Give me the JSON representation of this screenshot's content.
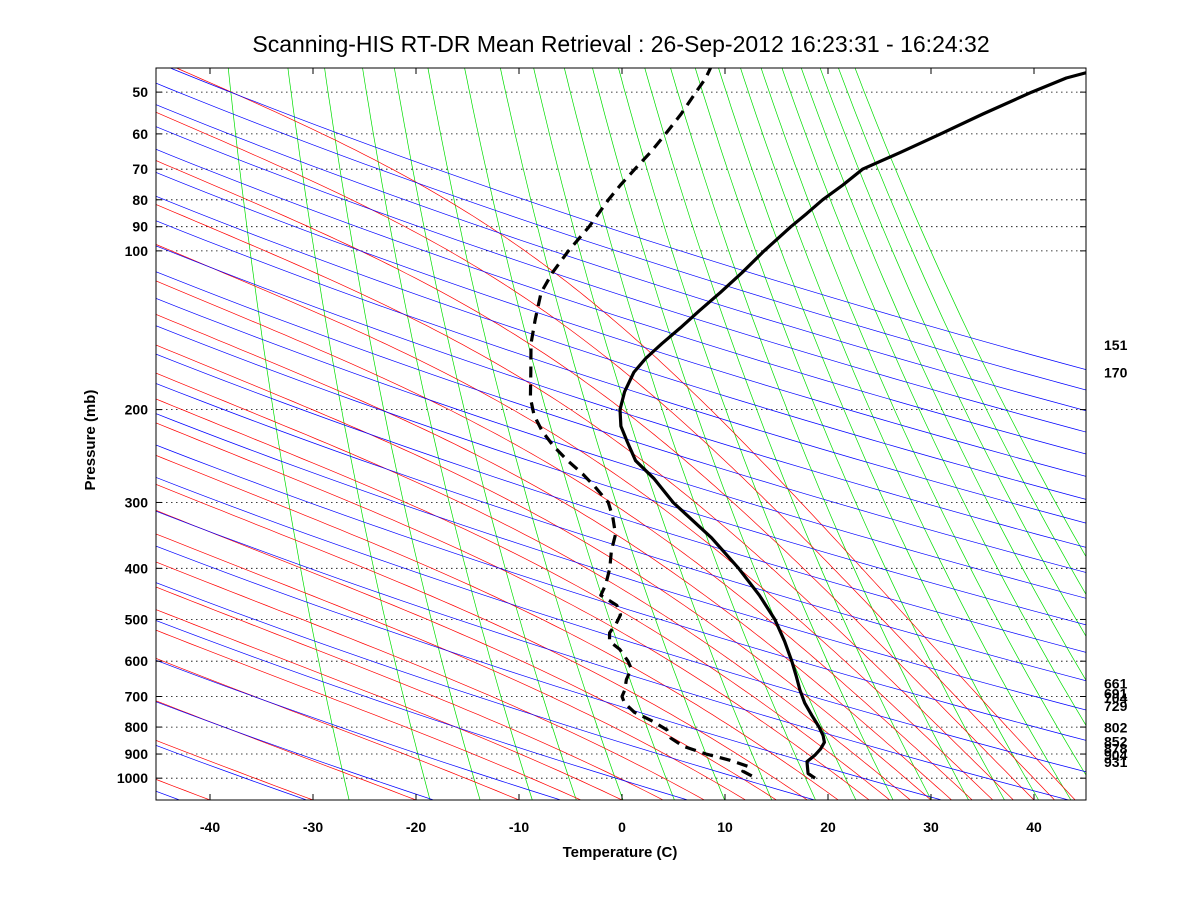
{
  "colors": {
    "dry_adiabat": "#0000ff",
    "moist_adiabat": "#ff0000",
    "mixing_ratio": "#00dd00",
    "temperature": "#000000",
    "dewpoint": "#000000",
    "grid": "#000000",
    "background": "#ffffff"
  },
  "chart_data": {
    "type": "line",
    "subtype": "skew-T log-p",
    "title": "Scanning-HIS RT-DR Mean Retrieval : 26-Sep-2012 16:23:31 - 16:24:32",
    "xlabel": "Temperature (C)",
    "ylabel": "Pressure (mb)",
    "xlim": [
      -45,
      45
    ],
    "ylim": [
      1100,
      45
    ],
    "x_ticks": [
      "-40",
      "-30",
      "-20",
      "-10",
      "0",
      "10",
      "20",
      "30",
      "40"
    ],
    "y_ticks": [
      "50",
      "60",
      "70",
      "80",
      "90",
      "100",
      "200",
      "300",
      "400",
      "500",
      "600",
      "700",
      "800",
      "900",
      "1000"
    ],
    "grid": "horizontal dotted at pressure ticks",
    "right_labels": [
      "151",
      "170",
      "661",
      "691",
      "704",
      "729",
      "802",
      "852",
      "878",
      "904",
      "931"
    ],
    "series": [
      {
        "name": "Temperature",
        "style": "solid-thick",
        "points": [
          {
            "p": 1000,
            "t": 18.2
          },
          {
            "p": 980,
            "t": 17.4
          },
          {
            "p": 955,
            "t": 17.2
          },
          {
            "p": 930,
            "t": 17.0
          },
          {
            "p": 905,
            "t": 17.6
          },
          {
            "p": 880,
            "t": 18.0
          },
          {
            "p": 855,
            "t": 18.2
          },
          {
            "p": 830,
            "t": 17.9
          },
          {
            "p": 800,
            "t": 17.3
          },
          {
            "p": 760,
            "t": 16.3
          },
          {
            "p": 720,
            "t": 15.3
          },
          {
            "p": 680,
            "t": 14.5
          },
          {
            "p": 640,
            "t": 13.8
          },
          {
            "p": 600,
            "t": 13.0
          },
          {
            "p": 550,
            "t": 11.8
          },
          {
            "p": 500,
            "t": 10.3
          },
          {
            "p": 450,
            "t": 8.2
          },
          {
            "p": 400,
            "t": 5.5
          },
          {
            "p": 350,
            "t": 2.1
          },
          {
            "p": 300,
            "t": -2.5
          },
          {
            "p": 270,
            "t": -5.0
          },
          {
            "p": 250,
            "t": -7.2
          },
          {
            "p": 230,
            "t": -8.5
          },
          {
            "p": 215,
            "t": -9.5
          },
          {
            "p": 200,
            "t": -10.0
          },
          {
            "p": 185,
            "t": -10.0
          },
          {
            "p": 170,
            "t": -9.6
          },
          {
            "p": 160,
            "t": -8.8
          },
          {
            "p": 150,
            "t": -7.6
          },
          {
            "p": 140,
            "t": -6.2
          },
          {
            "p": 130,
            "t": -4.8
          },
          {
            "p": 120,
            "t": -3.2
          },
          {
            "p": 110,
            "t": -1.6
          },
          {
            "p": 100,
            "t": 0.0
          },
          {
            "p": 90,
            "t": 2.0
          },
          {
            "p": 85,
            "t": 3.2
          },
          {
            "p": 80,
            "t": 4.4
          },
          {
            "p": 75,
            "t": 6.0
          },
          {
            "p": 70,
            "t": 7.5
          },
          {
            "p": 65,
            "t": 10.8
          },
          {
            "p": 60,
            "t": 14.2
          },
          {
            "p": 55,
            "t": 17.8
          },
          {
            "p": 50,
            "t": 22.0
          },
          {
            "p": 47,
            "t": 25.0
          },
          {
            "p": 45,
            "t": 28.4
          }
        ]
      },
      {
        "name": "Dewpoint",
        "style": "dashed-thick",
        "points": [
          {
            "p": 990,
            "t": 12.0
          },
          {
            "p": 970,
            "t": 11.0
          },
          {
            "p": 950,
            "t": 11.4
          },
          {
            "p": 925,
            "t": 9.5
          },
          {
            "p": 900,
            "t": 7.0
          },
          {
            "p": 870,
            "t": 4.6
          },
          {
            "p": 840,
            "t": 3.2
          },
          {
            "p": 810,
            "t": 2.6
          },
          {
            "p": 780,
            "t": 1.0
          },
          {
            "p": 750,
            "t": -1.0
          },
          {
            "p": 720,
            "t": -2.2
          },
          {
            "p": 700,
            "t": -2.6
          },
          {
            "p": 680,
            "t": -2.5
          },
          {
            "p": 650,
            "t": -2.6
          },
          {
            "p": 620,
            "t": -2.4
          },
          {
            "p": 600,
            "t": -2.9
          },
          {
            "p": 570,
            "t": -4.0
          },
          {
            "p": 550,
            "t": -5.2
          },
          {
            "p": 530,
            "t": -5.4
          },
          {
            "p": 510,
            "t": -5.0
          },
          {
            "p": 490,
            "t": -4.8
          },
          {
            "p": 470,
            "t": -5.4
          },
          {
            "p": 450,
            "t": -7.2
          },
          {
            "p": 430,
            "t": -7.0
          },
          {
            "p": 400,
            "t": -7.0
          },
          {
            "p": 370,
            "t": -7.3
          },
          {
            "p": 345,
            "t": -7.3
          },
          {
            "p": 320,
            "t": -8.0
          },
          {
            "p": 300,
            "t": -8.8
          },
          {
            "p": 280,
            "t": -10.5
          },
          {
            "p": 265,
            "t": -12.0
          },
          {
            "p": 250,
            "t": -13.8
          },
          {
            "p": 235,
            "t": -15.5
          },
          {
            "p": 220,
            "t": -17.0
          },
          {
            "p": 205,
            "t": -18.2
          },
          {
            "p": 190,
            "t": -19.0
          },
          {
            "p": 170,
            "t": -19.6
          },
          {
            "p": 150,
            "t": -20.3
          },
          {
            "p": 135,
            "t": -20.5
          },
          {
            "p": 120,
            "t": -20.6
          },
          {
            "p": 110,
            "t": -20.0
          },
          {
            "p": 100,
            "t": -19.0
          },
          {
            "p": 90,
            "t": -17.6
          },
          {
            "p": 80,
            "t": -16.4
          },
          {
            "p": 75,
            "t": -15.6
          },
          {
            "p": 70,
            "t": -14.6
          },
          {
            "p": 65,
            "t": -13.5
          },
          {
            "p": 60,
            "t": -12.5
          },
          {
            "p": 55,
            "t": -11.5
          },
          {
            "p": 50,
            "t": -10.6
          },
          {
            "p": 47,
            "t": -10.0
          },
          {
            "p": 45,
            "t": -9.8
          }
        ]
      }
    ]
  }
}
